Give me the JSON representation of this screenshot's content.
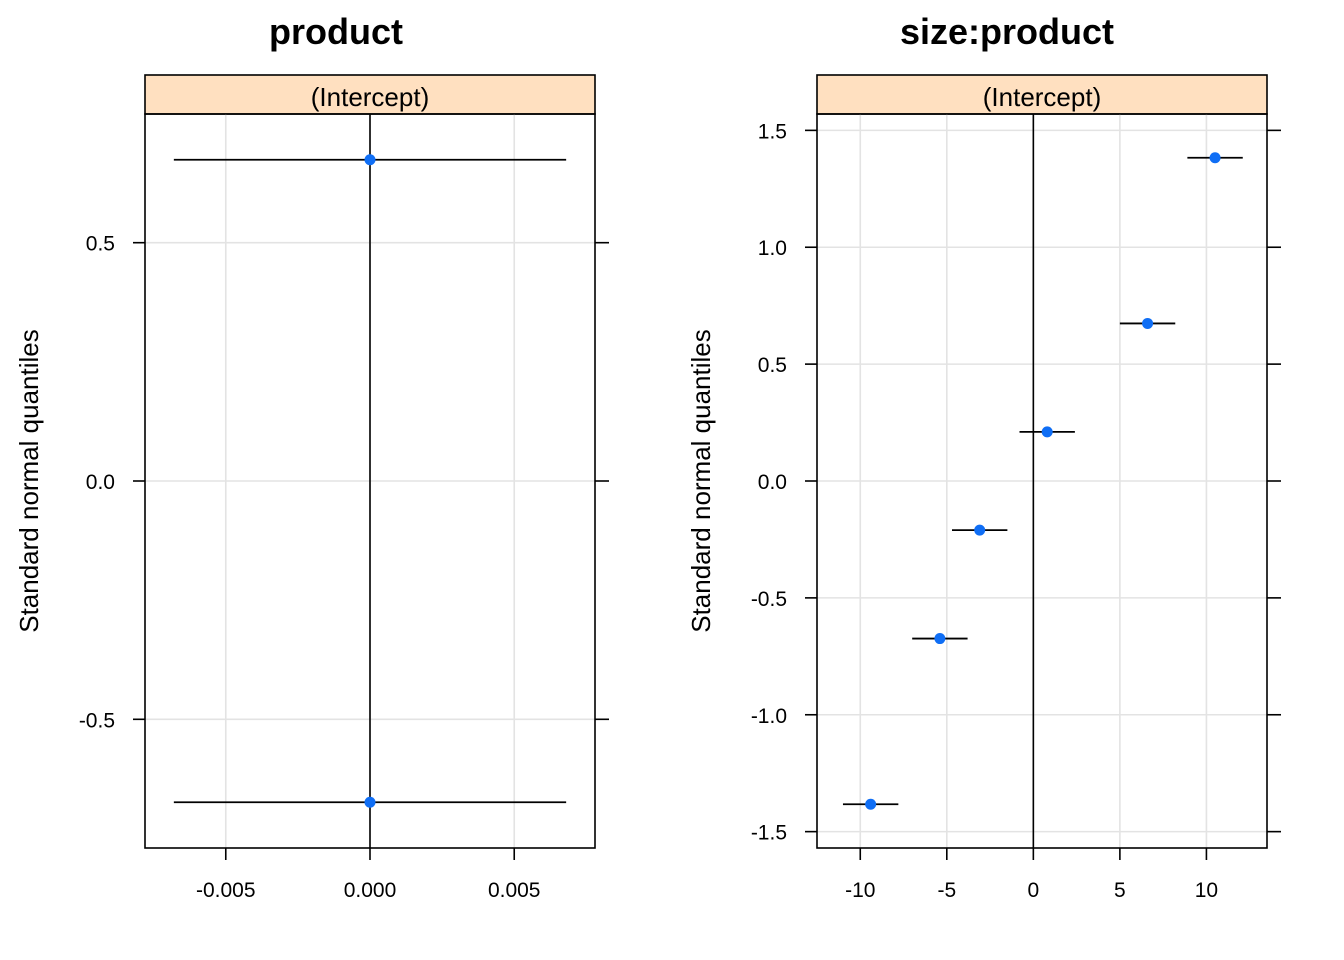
{
  "chart_data": [
    {
      "type": "scatter",
      "title": "product",
      "strip": "(Intercept)",
      "ylabel": "Standard normal quantiles",
      "xlim": [
        -0.0078,
        0.0078
      ],
      "ylim": [
        -0.77,
        0.77
      ],
      "xticks": [
        -0.005,
        0.0,
        0.005
      ],
      "xtick_labels": [
        "-0.005",
        "0.000",
        "0.005"
      ],
      "yticks": [
        0.5,
        0.0,
        -0.5
      ],
      "ytick_labels": [
        "0.5",
        "0.0",
        "-0.5"
      ],
      "points": [
        {
          "x": 0.0,
          "y": 0.674,
          "lower": -0.0068,
          "upper": 0.0068
        },
        {
          "x": 0.0,
          "y": -0.674,
          "lower": -0.0068,
          "upper": 0.0068
        }
      ],
      "grid": true,
      "zero_line": true,
      "colors": {
        "point": "#0f6ef5",
        "strip": "#ffe0c0"
      }
    },
    {
      "type": "scatter",
      "title": "size:product",
      "strip": "(Intercept)",
      "ylabel": "Standard normal quantiles",
      "xlim": [
        -12.5,
        13.5
      ],
      "ylim": [
        -1.57,
        1.57
      ],
      "xticks": [
        -10,
        -5,
        0,
        5,
        10
      ],
      "xtick_labels": [
        "-10",
        "-5",
        "0",
        "5",
        "10"
      ],
      "yticks": [
        1.5,
        1.0,
        0.5,
        0.0,
        -0.5,
        -1.0,
        -1.5
      ],
      "ytick_labels": [
        "1.5",
        "1.0",
        "0.5",
        "0.0",
        "-0.5",
        "-1.0",
        "-1.5"
      ],
      "points": [
        {
          "x": -9.4,
          "y": -1.383,
          "lower": -11.0,
          "upper": -7.8
        },
        {
          "x": -5.4,
          "y": -0.674,
          "lower": -7.0,
          "upper": -3.8
        },
        {
          "x": -3.1,
          "y": -0.21,
          "lower": -4.7,
          "upper": -1.5
        },
        {
          "x": 0.8,
          "y": 0.21,
          "lower": -0.8,
          "upper": 2.4
        },
        {
          "x": 6.6,
          "y": 0.674,
          "lower": 5.0,
          "upper": 8.2
        },
        {
          "x": 10.5,
          "y": 1.383,
          "lower": 8.9,
          "upper": 12.1
        }
      ],
      "grid": true,
      "zero_line": true,
      "colors": {
        "point": "#0f6ef5",
        "strip": "#ffe0c0"
      }
    }
  ]
}
